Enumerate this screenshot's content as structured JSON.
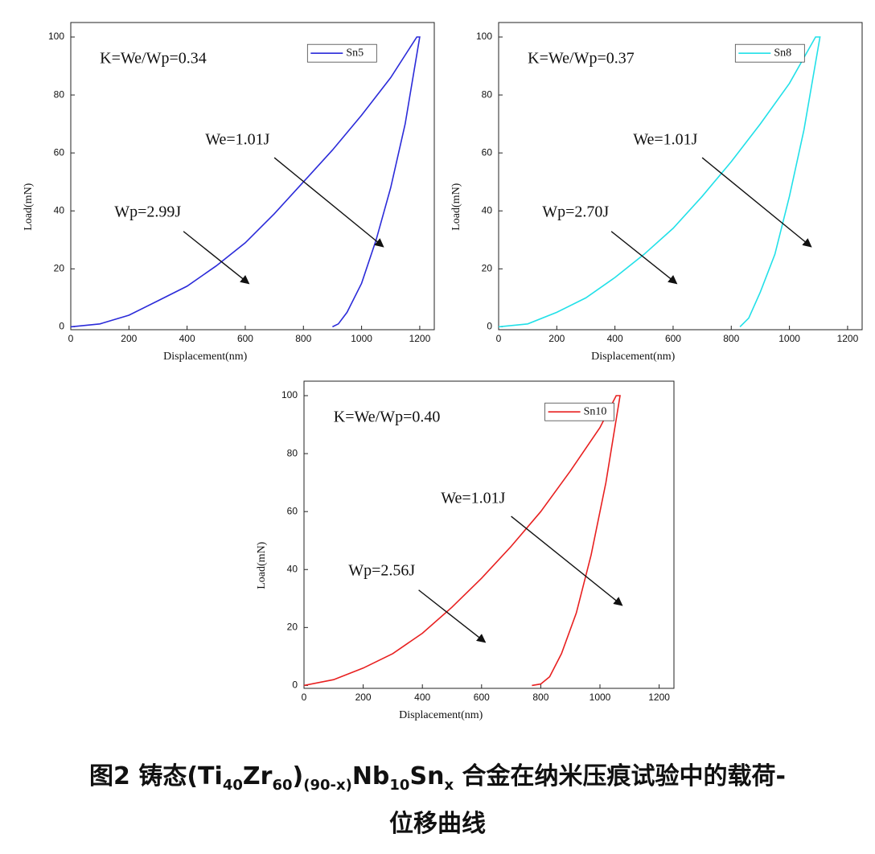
{
  "chart_data": [
    {
      "type": "line",
      "x_label": "Displacement(nm)",
      "y_label": "Load(mN)",
      "x": [
        0,
        100,
        200,
        300,
        400,
        500,
        600,
        700,
        800,
        900,
        1000,
        1100,
        1190,
        1200,
        1150,
        1100,
        1050,
        1000,
        950,
        920,
        900
      ],
      "series": [
        {
          "name": "Sn5",
          "color": "#2b2bd9",
          "values": [
            0,
            1,
            4,
            9,
            14,
            21,
            29,
            39,
            50,
            61,
            73,
            86,
            100,
            100,
            70,
            48,
            30,
            15,
            5,
            1,
            0
          ]
        }
      ],
      "xlim": [
        0,
        1250
      ],
      "ylim": [
        -1,
        105
      ],
      "xticks": [
        0,
        200,
        400,
        600,
        800,
        1000,
        1200
      ],
      "yticks": [
        0,
        20,
        40,
        60,
        80,
        100
      ],
      "legend": "upper right",
      "annotations": [
        {
          "text": "K=We/Wp=0.34"
        },
        {
          "text": "We=1.01J"
        },
        {
          "text": "Wp=2.99J"
        }
      ]
    },
    {
      "type": "line",
      "x_label": "Displacement(nm)",
      "y_label": "Load(mN)",
      "x": [
        0,
        100,
        200,
        300,
        400,
        500,
        600,
        700,
        800,
        900,
        1000,
        1090,
        1105,
        1050,
        1000,
        950,
        900,
        860,
        830
      ],
      "series": [
        {
          "name": "Sn8",
          "color": "#22e0e8",
          "values": [
            0,
            1,
            5,
            10,
            17,
            25,
            34,
            45,
            57,
            70,
            84,
            100,
            100,
            68,
            45,
            25,
            12,
            3,
            0
          ]
        }
      ],
      "xlim": [
        0,
        1250
      ],
      "ylim": [
        -1,
        105
      ],
      "xticks": [
        0,
        200,
        400,
        600,
        800,
        1000,
        1200
      ],
      "yticks": [
        0,
        20,
        40,
        60,
        80,
        100
      ],
      "legend": "upper right",
      "annotations": [
        {
          "text": "K=We/Wp=0.37"
        },
        {
          "text": "We=1.01J"
        },
        {
          "text": "Wp=2.70J"
        }
      ]
    },
    {
      "type": "line",
      "x_label": "Displacement(nm)",
      "y_label": "Load(mN)",
      "x": [
        0,
        100,
        200,
        300,
        400,
        500,
        600,
        700,
        800,
        900,
        1000,
        1055,
        1068,
        1020,
        970,
        920,
        870,
        830,
        800,
        770
      ],
      "series": [
        {
          "name": "Sn10",
          "color": "#e82020",
          "values": [
            0,
            2,
            6,
            11,
            18,
            27,
            37,
            48,
            60,
            74,
            89,
            100,
            100,
            70,
            45,
            25,
            11,
            3,
            0.5,
            0
          ]
        }
      ],
      "xlim": [
        0,
        1250
      ],
      "ylim": [
        -1,
        105
      ],
      "xticks": [
        0,
        200,
        400,
        600,
        800,
        1000,
        1200
      ],
      "yticks": [
        0,
        20,
        40,
        60,
        80,
        100
      ],
      "legend": "upper right",
      "annotations": [
        {
          "text": "K=We/Wp=0.40"
        },
        {
          "text": "We=1.01J"
        },
        {
          "text": "Wp=2.56J"
        }
      ]
    }
  ],
  "caption": {
    "line1": [
      {
        "text": "图2  铸态(Ti"
      },
      {
        "text": "40",
        "sub": true
      },
      {
        "text": "Zr"
      },
      {
        "text": "60",
        "sub": true
      },
      {
        "text": ")"
      },
      {
        "text": "(90-x)",
        "sub": true
      },
      {
        "text": "Nb"
      },
      {
        "text": "10",
        "sub": true
      },
      {
        "text": "Sn"
      },
      {
        "text": "x",
        "sub": true
      },
      {
        "text": " 合金在纳米压痕试验中的载荷-"
      }
    ],
    "line2": "位移曲线"
  }
}
